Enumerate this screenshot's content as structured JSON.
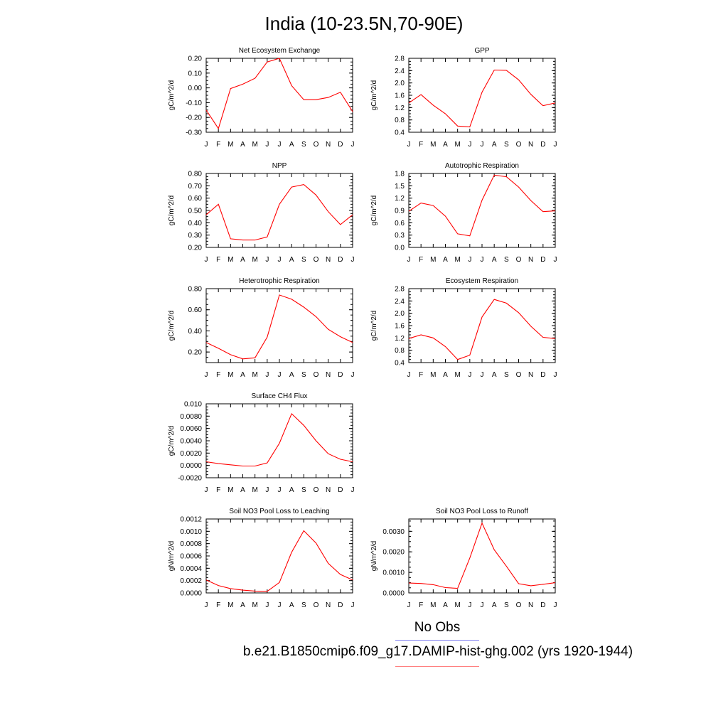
{
  "title": "India (10-23.5N,70-90E)",
  "legend": {
    "obs_label": "No Obs",
    "obs_color": "#7f7ff0",
    "case_label": "b.e21.B1850cmip6.f09_g17.DAMIP-hist-ghg.002 (yrs 1920-1944)",
    "case_color": "#ff8080"
  },
  "months": [
    "J",
    "F",
    "M",
    "A",
    "M",
    "J",
    "J",
    "A",
    "S",
    "O",
    "N",
    "D",
    "J"
  ],
  "chart_data": [
    {
      "type": "line",
      "title": "Net Ecosystem Exchange",
      "ylabel": "gC/m^2/d",
      "ylim": [
        -0.3,
        0.2
      ],
      "yticks": [
        -0.3,
        -0.2,
        -0.1,
        0.0,
        0.1,
        0.2
      ],
      "ytick_labels": [
        "-0.30",
        "-0.20",
        "-0.10",
        "0.00",
        "0.10",
        "0.20"
      ],
      "values": [
        -0.15,
        -0.275,
        -0.005,
        0.025,
        0.065,
        0.175,
        0.2,
        0.015,
        -0.08,
        -0.08,
        -0.065,
        -0.03,
        -0.16
      ],
      "color": "#ff0000"
    },
    {
      "type": "line",
      "title": "GPP",
      "ylabel": "gC/m^2/d",
      "ylim": [
        0.4,
        2.8
      ],
      "yticks": [
        0.4,
        0.8,
        1.2,
        1.6,
        2.0,
        2.4,
        2.8
      ],
      "ytick_labels": [
        "0.4",
        "0.8",
        "1.2",
        "1.6",
        "2.0",
        "2.4",
        "2.8"
      ],
      "values": [
        1.35,
        1.62,
        1.28,
        1.0,
        0.6,
        0.57,
        1.7,
        2.42,
        2.41,
        2.1,
        1.63,
        1.26,
        1.35
      ],
      "color": "#ff0000"
    },
    {
      "type": "line",
      "title": "NPP",
      "ylabel": "gC/m^2/d",
      "ylim": [
        0.2,
        0.8
      ],
      "yticks": [
        0.2,
        0.3,
        0.4,
        0.5,
        0.6,
        0.7,
        0.8
      ],
      "ytick_labels": [
        "0.20",
        "0.30",
        "0.40",
        "0.50",
        "0.60",
        "0.70",
        "0.80"
      ],
      "values": [
        0.465,
        0.55,
        0.27,
        0.26,
        0.26,
        0.285,
        0.55,
        0.69,
        0.71,
        0.625,
        0.49,
        0.385,
        0.465
      ],
      "color": "#ff0000"
    },
    {
      "type": "line",
      "title": "Autotrophic Respiration",
      "ylabel": "gC/m^2/d",
      "ylim": [
        0.0,
        1.8
      ],
      "yticks": [
        0.0,
        0.3,
        0.6,
        0.9,
        1.2,
        1.5,
        1.8
      ],
      "ytick_labels": [
        "0.0",
        "0.3",
        "0.6",
        "0.9",
        "1.2",
        "1.5",
        "1.8"
      ],
      "values": [
        0.88,
        1.08,
        1.02,
        0.76,
        0.33,
        0.28,
        1.15,
        1.76,
        1.72,
        1.47,
        1.14,
        0.87,
        0.89
      ],
      "color": "#ff0000"
    },
    {
      "type": "line",
      "title": "Heterotrophic Respiration",
      "ylabel": "gC/m^2/d",
      "ylim": [
        0.1,
        0.8
      ],
      "yticks": [
        0.2,
        0.4,
        0.6,
        0.8
      ],
      "ytick_labels": [
        "0.20",
        "0.40",
        "0.60",
        "0.80"
      ],
      "values": [
        0.29,
        0.235,
        0.175,
        0.135,
        0.145,
        0.34,
        0.74,
        0.7,
        0.625,
        0.535,
        0.415,
        0.345,
        0.29
      ],
      "color": "#ff0000"
    },
    {
      "type": "line",
      "title": "Ecosystem Respiration",
      "ylabel": "gC/m^2/d",
      "ylim": [
        0.4,
        2.8
      ],
      "yticks": [
        0.4,
        0.8,
        1.2,
        1.6,
        2.0,
        2.4,
        2.8
      ],
      "ytick_labels": [
        "0.4",
        "0.8",
        "1.2",
        "1.6",
        "2.0",
        "2.4",
        "2.8"
      ],
      "values": [
        1.18,
        1.3,
        1.2,
        0.92,
        0.5,
        0.64,
        1.88,
        2.45,
        2.33,
        2.02,
        1.58,
        1.22,
        1.18
      ],
      "color": "#ff0000"
    },
    {
      "type": "line",
      "title": "Surface CH4 Flux",
      "ylabel": "gC/m^2/d",
      "ylim": [
        -0.002,
        0.01
      ],
      "yticks": [
        -0.002,
        0.0,
        0.002,
        0.004,
        0.006,
        0.008,
        0.01
      ],
      "ytick_labels": [
        "-0.0020",
        "0.0000",
        "0.0020",
        "0.0040",
        "0.0060",
        "0.0080",
        "0.010"
      ],
      "values": [
        0.0006,
        0.0003,
        0.0001,
        -0.0001,
        -0.0001,
        0.0004,
        0.0036,
        0.0084,
        0.0065,
        0.004,
        0.0019,
        0.001,
        0.0006
      ],
      "color": "#ff0000"
    },
    {
      "type": "line",
      "title": "Soil NO3 Pool Loss to Leaching",
      "ylabel": "gN/m^2/d",
      "ylim": [
        0.0,
        0.0012
      ],
      "yticks": [
        0.0,
        0.0002,
        0.0004,
        0.0006,
        0.0008,
        0.001,
        0.0012
      ],
      "ytick_labels": [
        "0.0000",
        "0.0002",
        "0.0004",
        "0.0006",
        "0.0008",
        "0.0010",
        "0.0012"
      ],
      "values": [
        0.00021,
        0.00012,
        7e-05,
        4.5e-05,
        3e-05,
        2.5e-05,
        0.00017,
        0.00066,
        0.00101,
        0.00081,
        0.00048,
        0.0003,
        0.00021
      ],
      "color": "#ff0000"
    },
    {
      "type": "line",
      "title": "Soil NO3 Pool Loss to Runoff",
      "ylabel": "gN/m^2/d",
      "ylim": [
        0.0,
        0.0036
      ],
      "yticks": [
        0.0,
        0.001,
        0.002,
        0.003
      ],
      "ytick_labels": [
        "0.0000",
        "0.0010",
        "0.0020",
        "0.0030"
      ],
      "values": [
        0.00048,
        0.00046,
        0.0004,
        0.00026,
        0.00022,
        0.0017,
        0.0034,
        0.0021,
        0.0013,
        0.00045,
        0.00035,
        0.00042,
        0.0005
      ],
      "color": "#ff0000"
    }
  ]
}
